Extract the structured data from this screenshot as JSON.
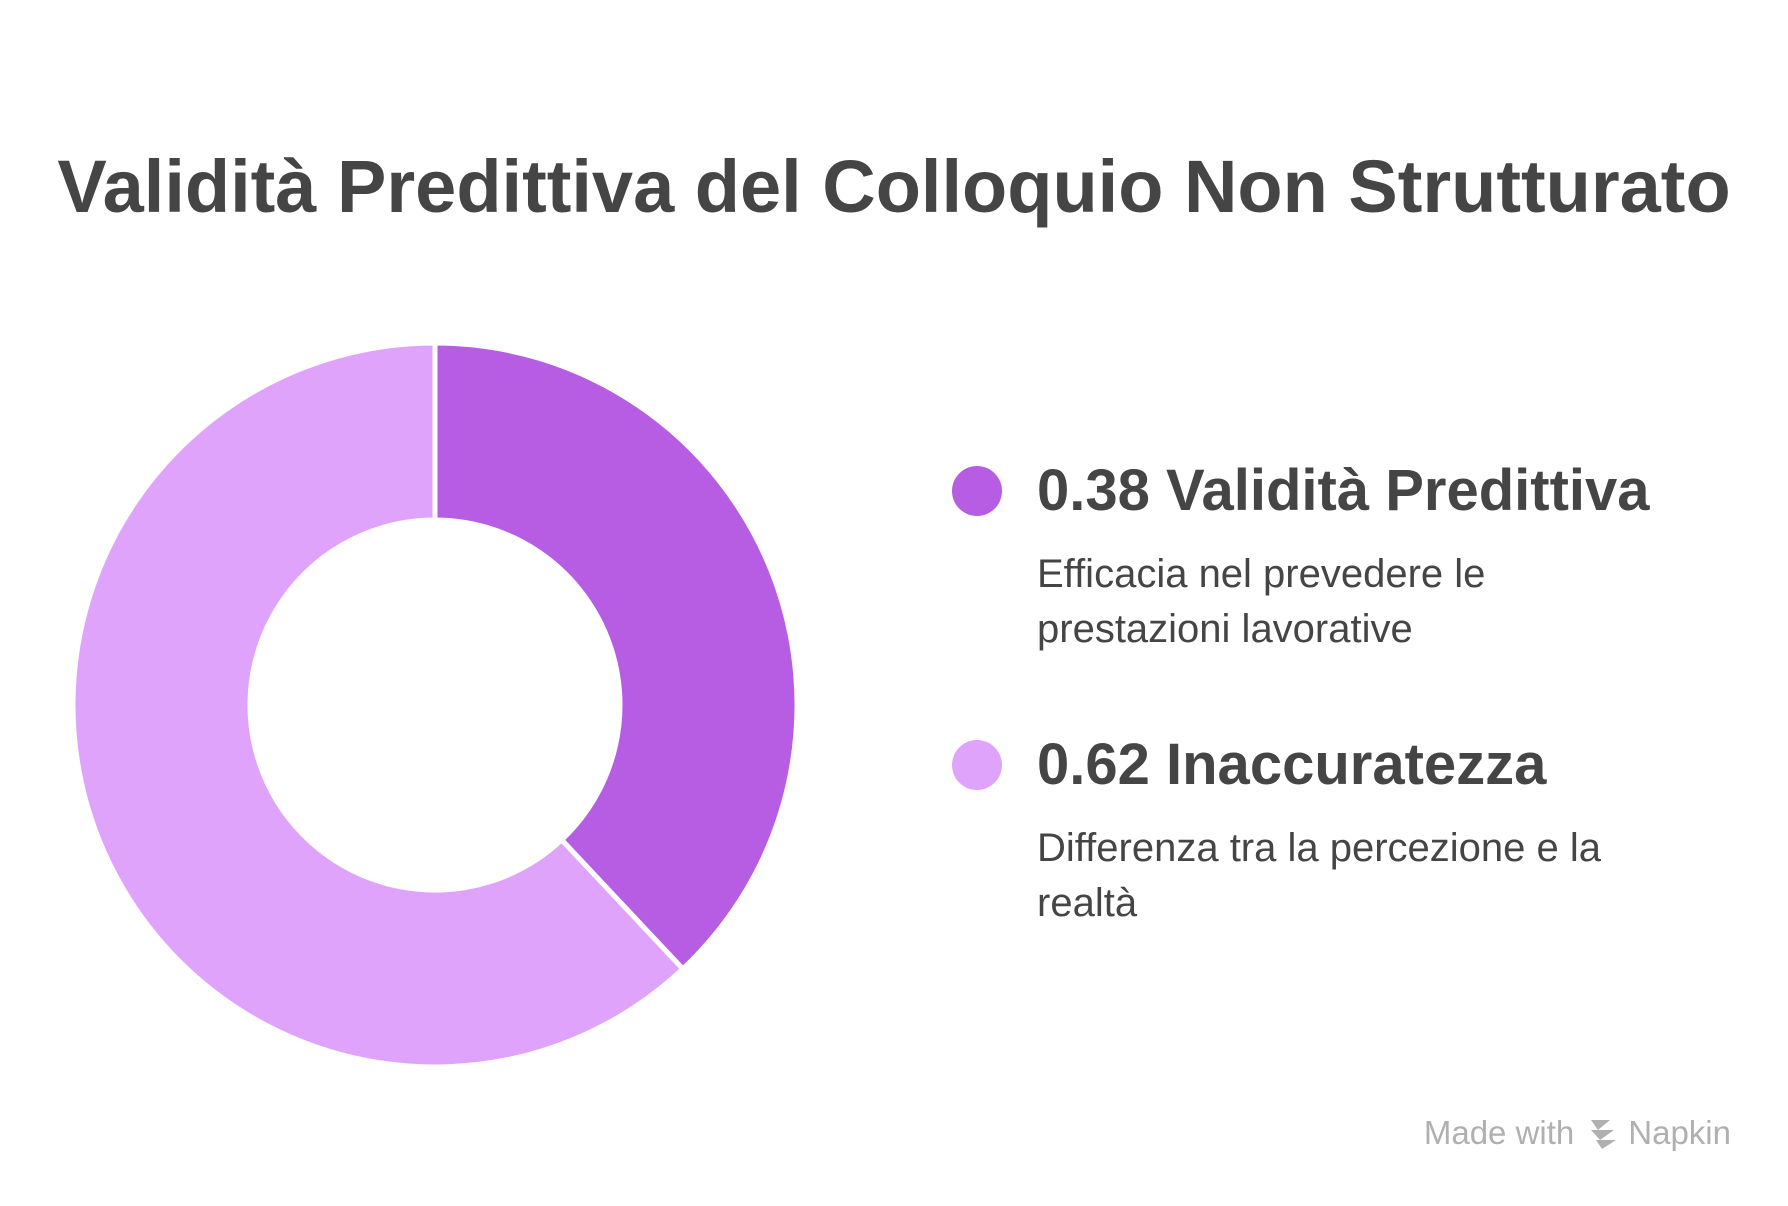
{
  "chart_data": {
    "type": "pie",
    "title": "Validità Predittiva del Colloquio Non Strutturato",
    "donut": true,
    "slices": [
      {
        "value": 0.38,
        "value_label": "0.38",
        "label": "Validità Predittiva",
        "description": "Efficacia nel prevedere le prestazioni lavorative",
        "color": "#b65de4"
      },
      {
        "value": 0.62,
        "value_label": "0.62",
        "label": "Inaccuratezza",
        "description": "Differenza tra la percezione e la realtà",
        "color": "#e0a3fc"
      }
    ],
    "legend_position": "right"
  },
  "watermark": {
    "prefix": "Made with",
    "brand": "Napkin",
    "icon": "napkin-logo-icon"
  }
}
